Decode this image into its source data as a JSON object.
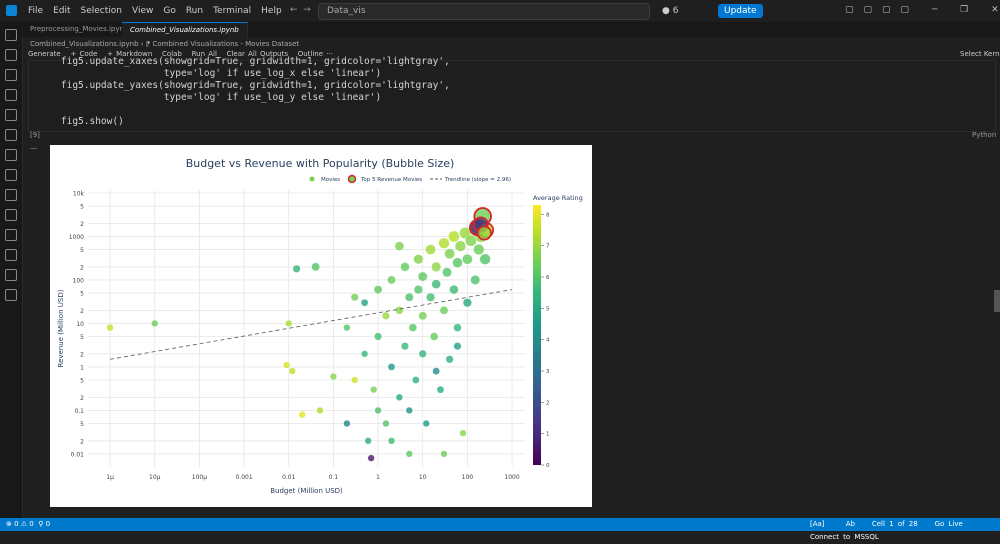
{
  "title_bar": {
    "menu": [
      "File",
      "Edit",
      "Selection",
      "View",
      "Go",
      "Run",
      "Terminal",
      "Help"
    ],
    "search": "Data_vis",
    "badge": "6",
    "update_button": "Update"
  },
  "tabs": [
    "Preprocessing_Movies.ipynb",
    "Combined_Visualizations.ipynb"
  ],
  "breadcrumb": [
    "Combined_Visualizations.ipynb",
    "Combined Visualizations - Movies Dataset"
  ],
  "toolbar": [
    "Generate",
    "+ Code",
    "+ Markdown",
    "Colab",
    "Run All",
    "Clear All Outputs",
    "Outline",
    "Select Kernel"
  ],
  "cell": {
    "code": [
      "    fig5.update_xaxes(showgrid=True, gridwidth=1, gridcolor='lightgray',",
      "                      type='log' if use_log_x else 'linear')",
      "    fig5.update_yaxes(showgrid=True, gridwidth=1, gridcolor='lightgray',",
      "                      type='log' if use_log_y else 'linear')",
      "",
      "    fig5.show()"
    ],
    "execution_count": "[9]",
    "language": "Python"
  },
  "chart_data": {
    "type": "scatter",
    "title": "Budget vs Revenue with Popularity (Bubble Size)",
    "xlabel": "Budget (Million USD)",
    "ylabel": "Revenue (Million USD)",
    "log_x": true,
    "log_y": true,
    "grid": true,
    "legend": "top",
    "xlim": [
      3.2e-07,
      1950
    ],
    "ylim": [
      0.005,
      11700
    ],
    "xticks": [
      {
        "value": 1e-06,
        "label": "1μ"
      },
      {
        "value": 1e-05,
        "label": "10μ"
      },
      {
        "value": 0.0001,
        "label": "100μ"
      },
      0.001,
      0.01,
      0.1,
      1,
      10,
      100,
      1000
    ],
    "yticks": [
      0.01,
      {
        "value": 0.02,
        "label": "2"
      },
      {
        "value": 0.05,
        "label": "5"
      },
      0.1,
      {
        "value": 0.2,
        "label": "2"
      },
      {
        "value": 0.5,
        "label": "5"
      },
      1,
      {
        "value": 2,
        "label": "2"
      },
      {
        "value": 5,
        "label": "5"
      },
      10,
      {
        "value": 20,
        "label": "2"
      },
      {
        "value": 50,
        "label": "5"
      },
      100,
      {
        "value": 200,
        "label": "2"
      },
      {
        "value": 500,
        "label": "5"
      },
      1000,
      {
        "value": 2000,
        "label": "2"
      },
      {
        "value": 5000,
        "label": "5"
      },
      {
        "value": 10000,
        "label": "10k"
      }
    ],
    "series": [
      {
        "name": "Movies",
        "color": "#7ad151",
        "x": [
          1e-06,
          1e-05,
          0.01,
          0.012,
          0.009,
          0.015,
          0.04,
          0.02,
          0.05,
          0.1,
          0.2,
          0.3,
          0.5,
          0.5,
          0.7,
          0.6,
          0.8,
          1,
          1,
          1.5,
          1.5,
          2,
          2,
          3,
          3,
          4,
          4,
          5,
          5,
          6,
          7,
          8,
          8,
          10,
          10,
          10,
          12,
          15,
          15,
          18,
          20,
          20,
          25,
          30,
          30,
          35,
          40,
          40,
          50,
          50,
          60,
          60,
          70,
          80,
          90,
          100,
          100,
          120,
          150,
          150,
          180,
          200,
          250,
          0.3,
          2,
          30,
          5,
          0.2,
          1,
          20,
          60,
          3
        ],
        "y": [
          8,
          10,
          10,
          0.8,
          1.1,
          180,
          200,
          0.08,
          0.1,
          0.6,
          8,
          40,
          30,
          2,
          0.008,
          0.02,
          0.3,
          5,
          60,
          0.05,
          15,
          1,
          100,
          0.2,
          20,
          3,
          200,
          0.01,
          40,
          8,
          0.5,
          300,
          60,
          2,
          15,
          120,
          0.05,
          500,
          40,
          5,
          200,
          80,
          0.3,
          700,
          20,
          150,
          1.5,
          400,
          1000,
          60,
          250,
          8,
          600,
          0.03,
          1200,
          300,
          30,
          800,
          1500,
          100,
          500,
          1000,
          300,
          0.5,
          0.02,
          0.01,
          0.1,
          0.05,
          0.1,
          0.8,
          3,
          600
        ],
        "size": [
          8,
          8,
          8,
          8,
          8,
          10,
          12,
          8,
          8,
          8,
          8,
          10,
          9,
          8,
          8,
          8,
          8,
          10,
          12,
          8,
          10,
          9,
          12,
          8,
          11,
          10,
          14,
          8,
          12,
          11,
          9,
          16,
          13,
          10,
          12,
          15,
          8,
          18,
          13,
          11,
          16,
          14,
          9,
          20,
          12,
          15,
          10,
          18,
          22,
          14,
          17,
          11,
          20,
          8,
          24,
          18,
          13,
          22,
          26,
          15,
          20,
          24,
          20,
          8,
          8,
          8,
          8,
          8,
          8,
          9,
          10,
          14
        ],
        "rating": [
          7.6,
          6.4,
          7.2,
          7.5,
          7.8,
          5.4,
          6.0,
          7.9,
          7.3,
          6.8,
          6.0,
          6.5,
          4.8,
          5.5,
          0.5,
          5.2,
          6.6,
          5.8,
          6.2,
          6.0,
          7.0,
          4.5,
          6.4,
          5.0,
          6.8,
          5.6,
          6.3,
          6.2,
          5.9,
          6.1,
          5.3,
          6.7,
          6.0,
          5.4,
          6.6,
          6.2,
          4.6,
          7.1,
          5.8,
          6.3,
          6.9,
          5.6,
          5.1,
          7.3,
          6.4,
          6.0,
          5.2,
          6.6,
          7.4,
          5.7,
          6.1,
          5.5,
          6.8,
          6.8,
          7.0,
          6.3,
          5.0,
          6.7,
          7.2,
          5.9,
          6.4,
          6.9,
          6.0,
          7.7,
          5.7,
          6.4,
          4.2,
          3.8,
          5.9,
          4.0,
          4.8,
          6.6
        ]
      },
      {
        "name": "Top 5 Revenue Movies",
        "color": "#d62728",
        "x": [
          220,
          170,
          260,
          200,
          240
        ],
        "y": [
          2900,
          1600,
          1400,
          1900,
          1200
        ],
        "size": [
          40,
          35,
          30,
          28,
          25
        ],
        "rating": [
          6.5,
          0.8,
          7.8,
          1.5,
          6.9
        ]
      },
      {
        "name": "Trendline (slope = 2.96)",
        "type": "line",
        "color": "#555555",
        "dash": true,
        "x": [
          1e-06,
          1000
        ],
        "y": [
          1.5,
          60
        ]
      }
    ],
    "colorbar": {
      "title": "Average Rating",
      "lim": [
        0,
        8.3
      ],
      "ticks": [
        0,
        1,
        2,
        3,
        4,
        5,
        6,
        7,
        8
      ],
      "colors": [
        "#440154",
        "#482878",
        "#3e4989",
        "#31688e",
        "#26828e",
        "#1f9e89",
        "#35b779",
        "#6ece58",
        "#b5de2b",
        "#fde725"
      ]
    }
  },
  "status_bar": {
    "left": [
      "0",
      "0",
      "0"
    ],
    "right": [
      "[Aa]",
      "Ab",
      "Cell 1 of 28",
      "Go Live",
      "Connect to MSSQL"
    ]
  }
}
